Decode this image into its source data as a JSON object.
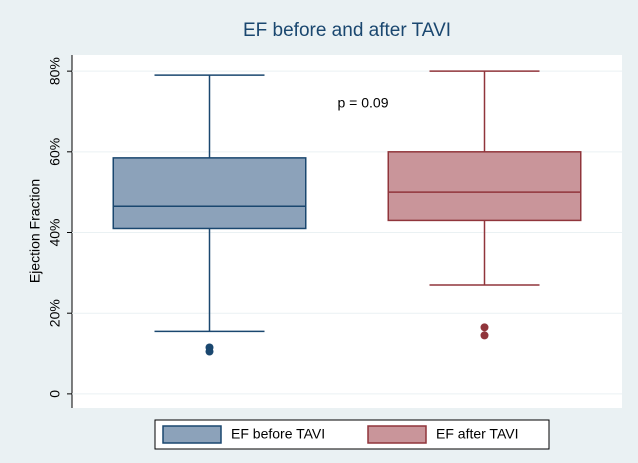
{
  "chart_data": {
    "type": "box",
    "title": "EF before and after TAVI",
    "y_label": "Ejection Fraction",
    "annotation": "p = 0.09",
    "series": [
      {
        "name": "EF before TAVI",
        "color": "#8ca2ba",
        "edge_color": "#1a476f",
        "min": 15.5,
        "q1": 41,
        "median": 46.5,
        "q3": 58.5,
        "max": 79,
        "outliers": [
          11.5,
          10.5
        ]
      },
      {
        "name": "EF after TAVI",
        "color": "#c9959a",
        "edge_color": "#90353b",
        "min": 27,
        "q1": 43,
        "median": 50,
        "q3": 60,
        "max": 80,
        "outliers": [
          16.5,
          14.5
        ]
      }
    ],
    "ylim": [
      -3.5,
      84
    ],
    "yticks": [
      0,
      {
        "value": 20,
        "label": "20%"
      },
      {
        "value": 40,
        "label": "40%"
      },
      {
        "value": 60,
        "label": "60%"
      },
      {
        "value": 80,
        "label": "80%"
      }
    ],
    "legend": "bottom"
  }
}
